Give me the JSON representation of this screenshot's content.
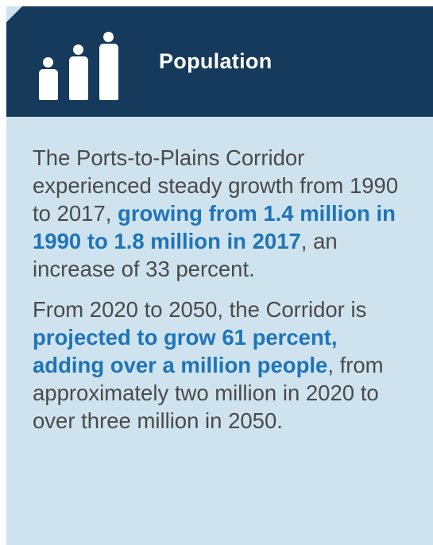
{
  "header": {
    "title": "Population",
    "icon": "population-icon",
    "background_color": "#163a5c"
  },
  "panel": {
    "background_color": "#cfe3ee",
    "highlight_color": "#1f74b8"
  },
  "paragraphs": [
    {
      "pre": "The Ports-to-Plains Corridor experienced steady growth from 1990 to 2017, ",
      "highlight": "growing from 1.4 million in 1990 to 1.8 million in 2017",
      "post": ", an increase of 33 percent."
    },
    {
      "pre": "From 2020 to 2050, the Corridor is ",
      "highlight": "projected to grow 61 percent, adding over a million people",
      "post": ", from approximately two million in 2020 to over three million in 2050."
    }
  ]
}
